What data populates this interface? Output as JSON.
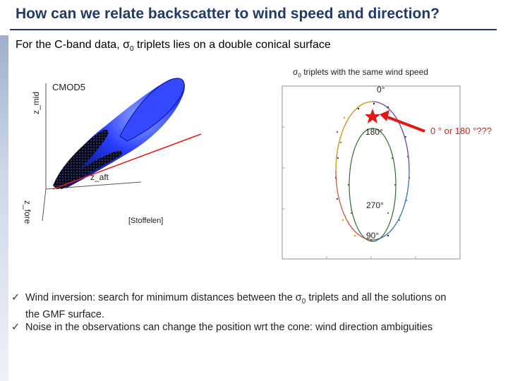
{
  "slide": {
    "title": "How can we relate backscatter to wind speed and direction?",
    "subtitle_prefix": "For the C-band data, σ",
    "subtitle_sub": "0",
    "subtitle_suffix": " triplets lies on a double conical surface"
  },
  "left_figure": {
    "cmod_label": "CMOD5",
    "axis_mid": "z_mid",
    "axis_aft": "z_aft",
    "axis_fore": "z_fore",
    "credit": "[Stoffelen]"
  },
  "right_figure": {
    "caption_prefix": "σ",
    "caption_sub": "0",
    "caption_suffix": " triplets with the same wind speed",
    "label_0": "0°",
    "label_180": "180°",
    "label_270": "270°",
    "label_90": "90°",
    "annotation": "0 °  or 180 °???",
    "colors": {
      "ring": "#d24b2a",
      "inner": "#2e6b2e",
      "arrow": "#e01818",
      "star": "#e01818"
    }
  },
  "bullets": [
    {
      "check": "ü",
      "line1_prefix": "Wind inversion: search for minimum distances between the  σ",
      "line1_sub": "0",
      "line1_suffix": " triplets and all the solutions on",
      "line2": "the GMF surface."
    },
    {
      "check": "ü",
      "text": "Noise in the observations can change the position wrt the cone: wind direction ambiguities"
    }
  ]
}
